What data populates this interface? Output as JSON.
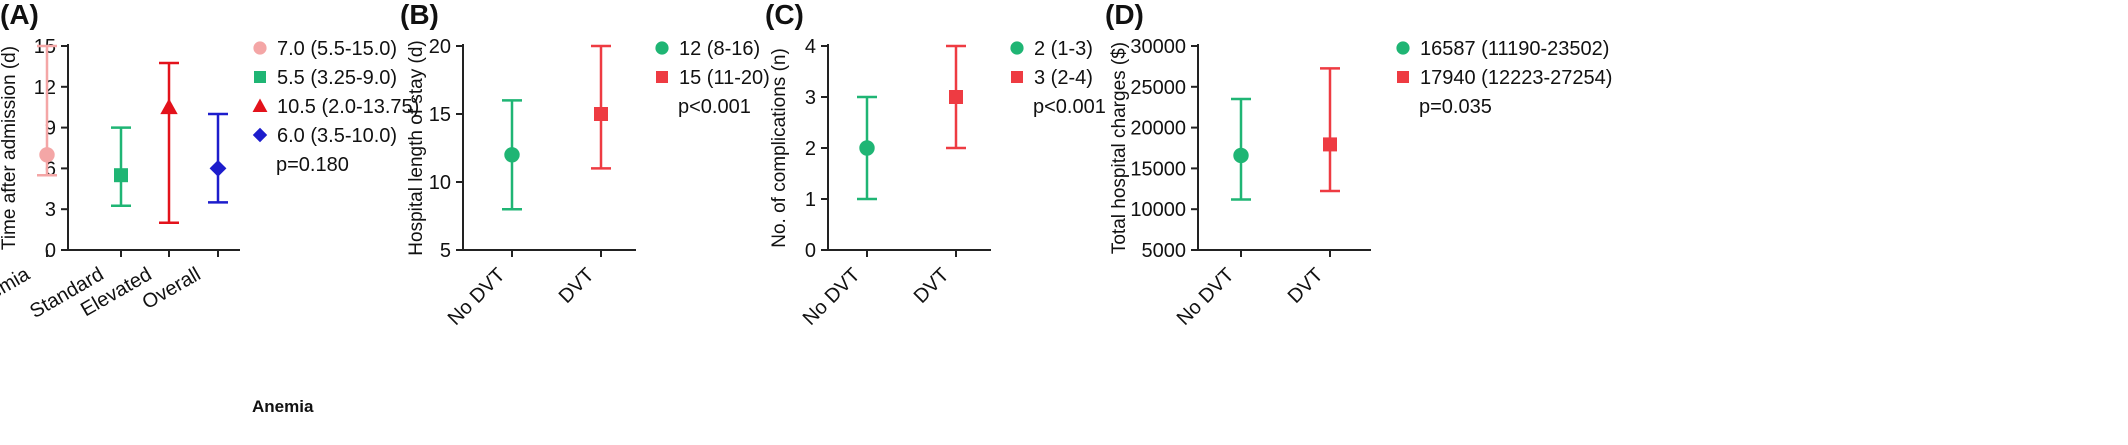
{
  "chart_data": [
    {
      "type": "scatter",
      "panel_label": "(A)",
      "ylabel": "Time after admission (d)",
      "xlabel": "Anemia",
      "ylim": [
        0,
        15
      ],
      "yticks": [
        0,
        3,
        6,
        9,
        12,
        15
      ],
      "categories": [
        "Anemia",
        "Standard",
        "Elevated",
        "Overall"
      ],
      "x_tick_rotation": -30,
      "series": [
        {
          "category": "Anemia",
          "median": 7.0,
          "low": 5.5,
          "high": 15.0,
          "color": "#f4a6a6",
          "marker": "circle",
          "legend": "7.0 (5.5-15.0)"
        },
        {
          "category": "Standard",
          "median": 5.5,
          "low": 3.25,
          "high": 9.0,
          "color": "#1fb574",
          "marker": "square",
          "legend": "5.5 (3.25-9.0)"
        },
        {
          "category": "Elevated",
          "median": 10.5,
          "low": 2.0,
          "high": 13.75,
          "color": "#e3121b",
          "marker": "triangle",
          "legend": "10.5 (2.0-13.75)"
        },
        {
          "category": "Overall",
          "median": 6.0,
          "low": 3.5,
          "high": 10.0,
          "color": "#1d1dcc",
          "marker": "diamond",
          "legend": "6.0 (3.5-10.0)"
        }
      ],
      "pvalue": "p=0.180"
    },
    {
      "type": "scatter",
      "panel_label": "(B)",
      "ylabel": "Hospital length of stay (d)",
      "ylim": [
        5,
        20
      ],
      "yticks": [
        5,
        10,
        15,
        20
      ],
      "categories": [
        "No DVT",
        "DVT"
      ],
      "x_tick_rotation": -45,
      "series": [
        {
          "category": "No DVT",
          "median": 12,
          "low": 8,
          "high": 16,
          "color": "#1fb574",
          "marker": "circle",
          "legend": "12 (8-16)"
        },
        {
          "category": "DVT",
          "median": 15,
          "low": 11,
          "high": 20,
          "color": "#ee3b42",
          "marker": "square",
          "legend": "15 (11-20)"
        }
      ],
      "pvalue": "p<0.001"
    },
    {
      "type": "scatter",
      "panel_label": "(C)",
      "ylabel": "No. of complications (n)",
      "ylim": [
        0,
        4
      ],
      "yticks": [
        0,
        1,
        2,
        3,
        4
      ],
      "categories": [
        "No DVT",
        "DVT"
      ],
      "x_tick_rotation": -45,
      "series": [
        {
          "category": "No DVT",
          "median": 2,
          "low": 1,
          "high": 3,
          "color": "#1fb574",
          "marker": "circle",
          "legend": "2 (1-3)"
        },
        {
          "category": "DVT",
          "median": 3,
          "low": 2,
          "high": 4,
          "color": "#ee3b42",
          "marker": "square",
          "legend": "3 (2-4)"
        }
      ],
      "pvalue": "p<0.001"
    },
    {
      "type": "scatter",
      "panel_label": "(D)",
      "ylabel": "Total hospital charges ($)",
      "ylim": [
        5000,
        30000
      ],
      "yticks": [
        5000,
        10000,
        15000,
        20000,
        25000,
        30000
      ],
      "categories": [
        "No DVT",
        "DVT"
      ],
      "x_tick_rotation": -45,
      "series": [
        {
          "category": "No DVT",
          "median": 16587,
          "low": 11190,
          "high": 23502,
          "color": "#1fb574",
          "marker": "circle",
          "legend": "16587 (11190-23502)"
        },
        {
          "category": "DVT",
          "median": 17940,
          "low": 12223,
          "high": 27254,
          "color": "#ee3b42",
          "marker": "square",
          "legend": "17940 (12223-27254)"
        }
      ],
      "pvalue": "p=0.035"
    }
  ]
}
